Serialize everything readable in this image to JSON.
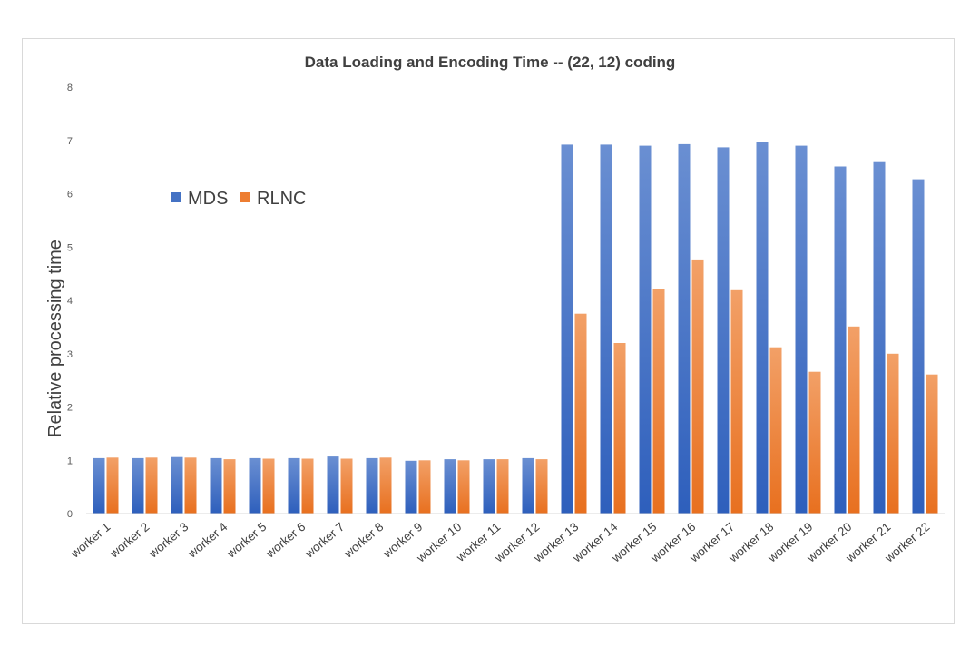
{
  "chart_data": {
    "type": "bar",
    "title": "Data Loading and Encoding Time -- (22, 12) coding",
    "ylabel": "Relative processing time",
    "xlabel": "",
    "ylim": [
      0,
      8
    ],
    "yticks": [
      "0",
      "1",
      "2",
      "3",
      "4",
      "5",
      "6",
      "7",
      "8"
    ],
    "grid": false,
    "legend_position": "upper-left",
    "categories": [
      "worker 1",
      "worker 2",
      "worker 3",
      "worker 4",
      "worker 5",
      "worker 6",
      "worker 7",
      "worker 8",
      "worker 9",
      "worker 10",
      "worker 11",
      "worker 12",
      "worker 13",
      "worker 14",
      "worker 15",
      "worker 16",
      "worker 17",
      "worker 18",
      "worker 19",
      "worker 20",
      "worker 21",
      "worker 22"
    ],
    "series": [
      {
        "name": "MDS",
        "color": "#4472c4",
        "values": [
          1.04,
          1.04,
          1.06,
          1.04,
          1.04,
          1.04,
          1.07,
          1.04,
          0.99,
          1.02,
          1.02,
          1.04,
          6.92,
          6.92,
          6.9,
          6.93,
          6.87,
          6.97,
          6.9,
          6.51,
          6.61,
          6.27
        ]
      },
      {
        "name": "RLNC",
        "color": "#ed7d31",
        "values": [
          1.05,
          1.05,
          1.05,
          1.02,
          1.03,
          1.03,
          1.03,
          1.05,
          1.0,
          1.0,
          1.02,
          1.02,
          3.75,
          3.2,
          4.21,
          4.75,
          4.19,
          3.12,
          2.66,
          3.51,
          3.0,
          2.61
        ]
      }
    ]
  }
}
